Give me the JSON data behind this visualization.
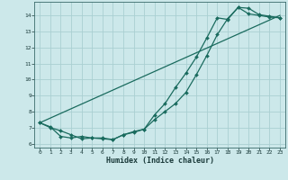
{
  "xlabel": "Humidex (Indice chaleur)",
  "bg_color": "#cce8ea",
  "grid_color": "#aacfd2",
  "line_color": "#1a6b5e",
  "xlim": [
    -0.5,
    23.5
  ],
  "ylim": [
    5.75,
    14.85
  ],
  "xticks": [
    0,
    1,
    2,
    3,
    4,
    5,
    6,
    7,
    8,
    9,
    10,
    11,
    12,
    13,
    14,
    15,
    16,
    17,
    18,
    19,
    20,
    21,
    22,
    23
  ],
  "yticks": [
    6,
    7,
    8,
    9,
    10,
    11,
    12,
    13,
    14
  ],
  "line1_x": [
    0,
    1,
    2,
    3,
    4,
    5,
    6,
    7,
    8,
    9,
    10,
    11,
    12,
    13,
    14,
    15,
    16,
    17,
    18,
    19,
    20,
    21,
    22,
    23
  ],
  "line1_y": [
    7.3,
    7.05,
    6.45,
    6.35,
    6.45,
    6.35,
    6.3,
    6.25,
    6.55,
    6.75,
    6.9,
    7.8,
    8.5,
    9.5,
    10.4,
    11.4,
    12.6,
    13.85,
    13.75,
    14.5,
    14.45,
    14.05,
    13.95,
    13.85
  ],
  "line2_x": [
    0,
    1,
    2,
    3,
    4,
    5,
    6,
    7,
    8,
    9,
    10,
    11,
    12,
    13,
    14,
    15,
    16,
    17,
    18,
    19,
    20,
    21,
    22,
    23
  ],
  "line2_y": [
    7.3,
    7.0,
    6.8,
    6.55,
    6.3,
    6.35,
    6.35,
    6.25,
    6.55,
    6.7,
    6.9,
    7.5,
    8.0,
    8.5,
    9.2,
    10.3,
    11.5,
    12.8,
    13.8,
    14.5,
    14.1,
    14.0,
    13.9,
    13.85
  ],
  "line3_x": [
    0,
    23
  ],
  "line3_y": [
    7.3,
    14.0
  ]
}
